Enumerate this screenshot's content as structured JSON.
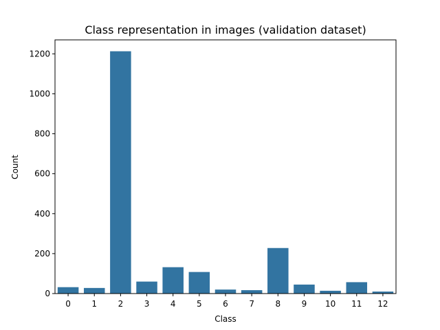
{
  "chart_data": {
    "type": "bar",
    "title": "Class representation in images (validation dataset)",
    "xlabel": "Class",
    "ylabel": "Count",
    "categories": [
      "0",
      "1",
      "2",
      "3",
      "4",
      "5",
      "6",
      "7",
      "8",
      "9",
      "10",
      "11",
      "12"
    ],
    "values": [
      32,
      28,
      1213,
      60,
      132,
      108,
      20,
      17,
      228,
      45,
      14,
      57,
      10
    ],
    "ylim": [
      0,
      1270
    ],
    "yticks": [
      0,
      200,
      400,
      600,
      800,
      1000,
      1200
    ],
    "grid": false,
    "legend": "none",
    "bar_color": "#3274a1"
  }
}
